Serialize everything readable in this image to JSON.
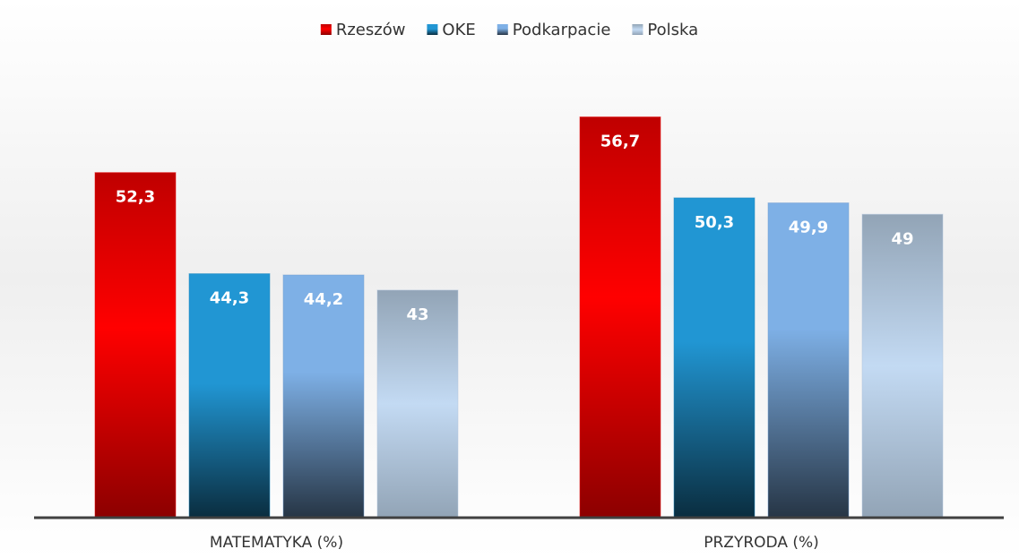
{
  "chart_data": {
    "type": "bar",
    "categories": [
      "MATEMATYKA (%)",
      "PRZYRODA (%)"
    ],
    "series": [
      {
        "name": "Rzeszów",
        "color": "#ff0000",
        "values": [
          52.3,
          56.7
        ],
        "value_labels": [
          "52,3",
          "56,7"
        ]
      },
      {
        "name": "OKE",
        "color": "#2196d3",
        "values": [
          44.3,
          50.3
        ],
        "value_labels": [
          "44,3",
          "50,3"
        ]
      },
      {
        "name": "Podkarpacie",
        "color": "#7eb0e6",
        "values": [
          44.2,
          49.9
        ],
        "value_labels": [
          "44,2",
          "49,9"
        ]
      },
      {
        "name": "Polska",
        "color": "#c3daf3",
        "values": [
          43,
          49
        ],
        "value_labels": [
          "43",
          "49"
        ]
      }
    ],
    "ylim": [
      25,
      60
    ]
  }
}
